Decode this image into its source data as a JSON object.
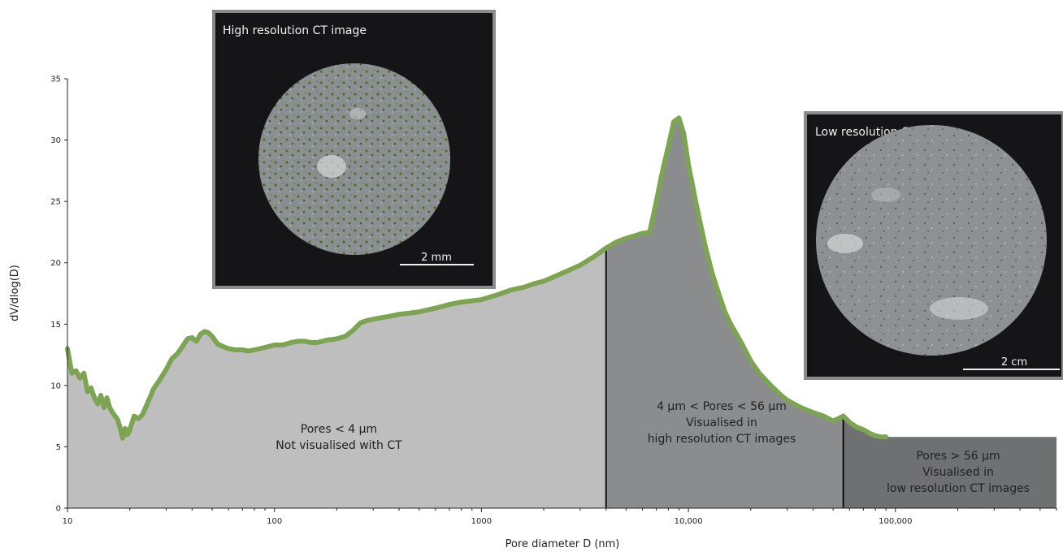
{
  "chart_data": {
    "type": "area",
    "xlabel": "Pore diameter D (nm)",
    "ylabel": "dV/dlog(D)",
    "x_scale": "log",
    "xlim": [
      10,
      600000
    ],
    "ylim": [
      0,
      35
    ],
    "x_ticks": [
      {
        "value": 10,
        "label": "10"
      },
      {
        "value": 100,
        "label": "100"
      },
      {
        "value": 1000,
        "label": "1000"
      },
      {
        "value": 10000,
        "label": "10,000"
      },
      {
        "value": 100000,
        "label": "100,000"
      }
    ],
    "y_ticks": [
      {
        "value": 0,
        "label": "0"
      },
      {
        "value": 5,
        "label": "5"
      },
      {
        "value": 10,
        "label": "10"
      },
      {
        "value": 15,
        "label": "15"
      },
      {
        "value": 20,
        "label": "20"
      },
      {
        "value": 25,
        "label": "25"
      },
      {
        "value": 30,
        "label": "30"
      },
      {
        "value": 35,
        "label": "35"
      }
    ],
    "grid": false,
    "line_color": "#7da453",
    "series": [
      {
        "x": [
          10,
          10.5,
          11,
          11.5,
          12,
          12.5,
          13,
          13.5,
          14,
          14.5,
          15,
          15.5,
          16,
          16.5,
          17,
          17.5,
          18,
          18.5,
          19,
          19.5,
          20,
          21,
          22,
          23,
          24,
          25,
          26,
          28,
          30,
          32,
          34,
          36,
          38,
          40,
          42,
          44,
          46,
          48,
          50,
          53,
          56,
          60,
          65,
          70,
          75,
          80,
          85,
          90,
          95,
          100,
          110,
          120,
          130,
          140,
          150,
          160,
          170,
          180,
          200,
          220,
          240,
          260,
          280,
          300,
          350,
          400,
          450,
          500,
          600,
          700,
          800,
          900,
          1000,
          1200,
          1400,
          1600,
          1800,
          2000,
          2500,
          3000,
          3500,
          4000,
          4500,
          5000,
          5500,
          6000,
          6500,
          7000,
          7500,
          8000,
          8500,
          9000,
          9500,
          10000,
          11000,
          12000,
          13000,
          14000,
          15000,
          16000,
          18000,
          20000,
          22000,
          25000,
          28000,
          30000,
          35000,
          40000,
          45000,
          50000,
          53000,
          56000,
          60000,
          65000,
          70000,
          75000,
          80000,
          85000,
          90000
        ],
        "y": [
          13,
          11,
          11.2,
          10.6,
          11,
          9.5,
          9.8,
          9,
          8.5,
          9.2,
          8.2,
          9,
          8.2,
          7.8,
          7.5,
          7.2,
          6.5,
          5.7,
          6.5,
          6,
          6.4,
          7.5,
          7.3,
          7.6,
          8.3,
          9,
          9.7,
          10.5,
          11.3,
          12.2,
          12.6,
          13.2,
          13.8,
          13.9,
          13.6,
          14.2,
          14.4,
          14.3,
          14,
          13.4,
          13.2,
          13,
          12.9,
          12.9,
          12.8,
          12.9,
          13,
          13.1,
          13.2,
          13.3,
          13.3,
          13.5,
          13.6,
          13.6,
          13.5,
          13.5,
          13.6,
          13.7,
          13.8,
          14,
          14.5,
          15.1,
          15.3,
          15.4,
          15.6,
          15.8,
          15.9,
          16.0,
          16.3,
          16.6,
          16.8,
          16.9,
          17.0,
          17.4,
          17.8,
          18.0,
          18.3,
          18.5,
          19.2,
          19.8,
          20.5,
          21.2,
          21.7,
          22,
          22.2,
          22.4,
          22.5,
          25,
          27.5,
          29.5,
          31.5,
          31.8,
          30.5,
          28,
          24.5,
          21.5,
          19.2,
          17.5,
          16,
          15.0,
          13.5,
          12,
          11.0,
          10.0,
          9.2,
          8.8,
          8.2,
          7.8,
          7.5,
          7.1,
          7.3,
          7.5,
          7.0,
          6.6,
          6.4,
          6.1,
          5.9,
          5.8,
          5.8
        ]
      }
    ],
    "regions": [
      {
        "from": 10,
        "to": 4000,
        "color": "#bdbebd",
        "label_lines": [
          "Pores < 4 µm",
          "Not visualised with CT"
        ]
      },
      {
        "from": 4000,
        "to": 56000,
        "color": "#8b8c8d",
        "label_lines": [
          "4 µm < Pores < 56 µm",
          "Visualised in",
          "high resolution CT images"
        ]
      },
      {
        "from": 56000,
        "to": 600000,
        "color": "#6f7072",
        "label_lines": [
          "Pores > 56 µm",
          "Visualised in",
          "low resolution CT images"
        ]
      }
    ],
    "boundaries": [
      4000,
      56000
    ]
  },
  "insets": {
    "high": {
      "title": "High resolution CT image",
      "scale_label": "2 mm"
    },
    "low": {
      "title": "Low resolution CT image",
      "scale_label": "2 cm"
    }
  }
}
